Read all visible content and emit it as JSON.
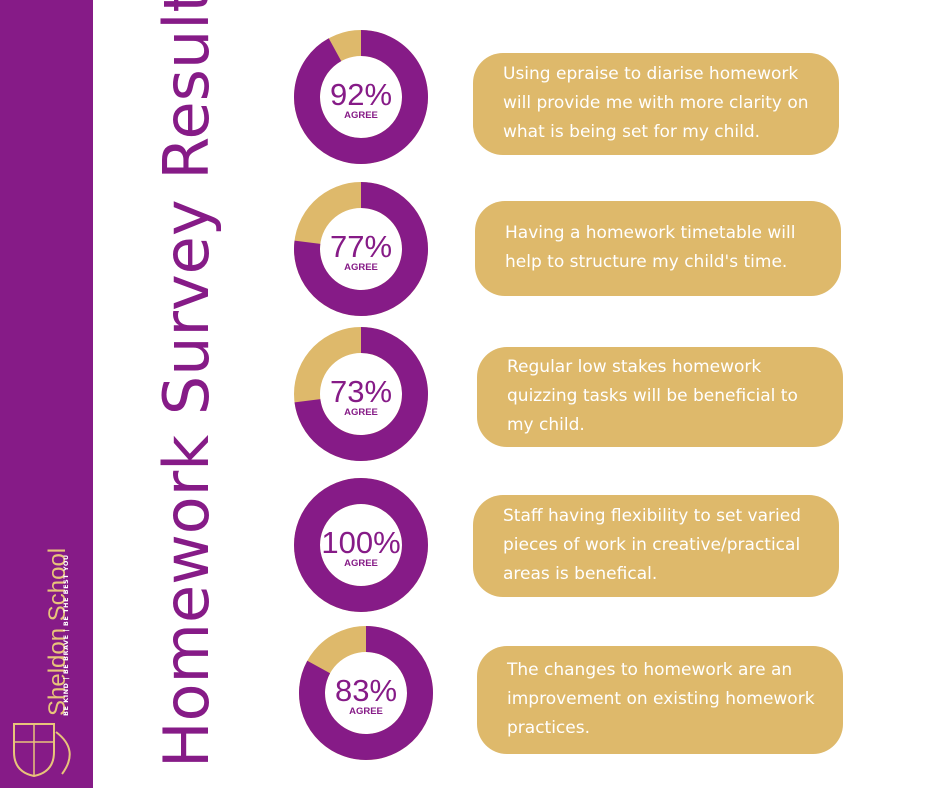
{
  "title": "Homework Survey Results",
  "school": {
    "name": "Sheldon School",
    "motto": "BE KIND | BE BRAVE | BE THE BEST YOU"
  },
  "items": [
    {
      "value": 92,
      "value_label": "92%",
      "caption": "AGREE",
      "statement": "Using epraise to diarise homework will provide me with more clarity on what is being set for my child."
    },
    {
      "value": 77,
      "value_label": "77%",
      "caption": "AGREE",
      "statement": "Having a homework timetable will help to structure my child's time."
    },
    {
      "value": 73,
      "value_label": "73%",
      "caption": "AGREE",
      "statement": "Regular low stakes homework quizzing tasks will be beneficial to my child."
    },
    {
      "value": 100,
      "value_label": "100%",
      "caption": "AGREE",
      "statement": "Staff having flexibility to set varied pieces of work in creative/practical areas is benefical."
    },
    {
      "value": 83,
      "value_label": "83%",
      "caption": "AGREE",
      "statement": "The changes to homework are an improvement on existing homework practices."
    }
  ]
}
